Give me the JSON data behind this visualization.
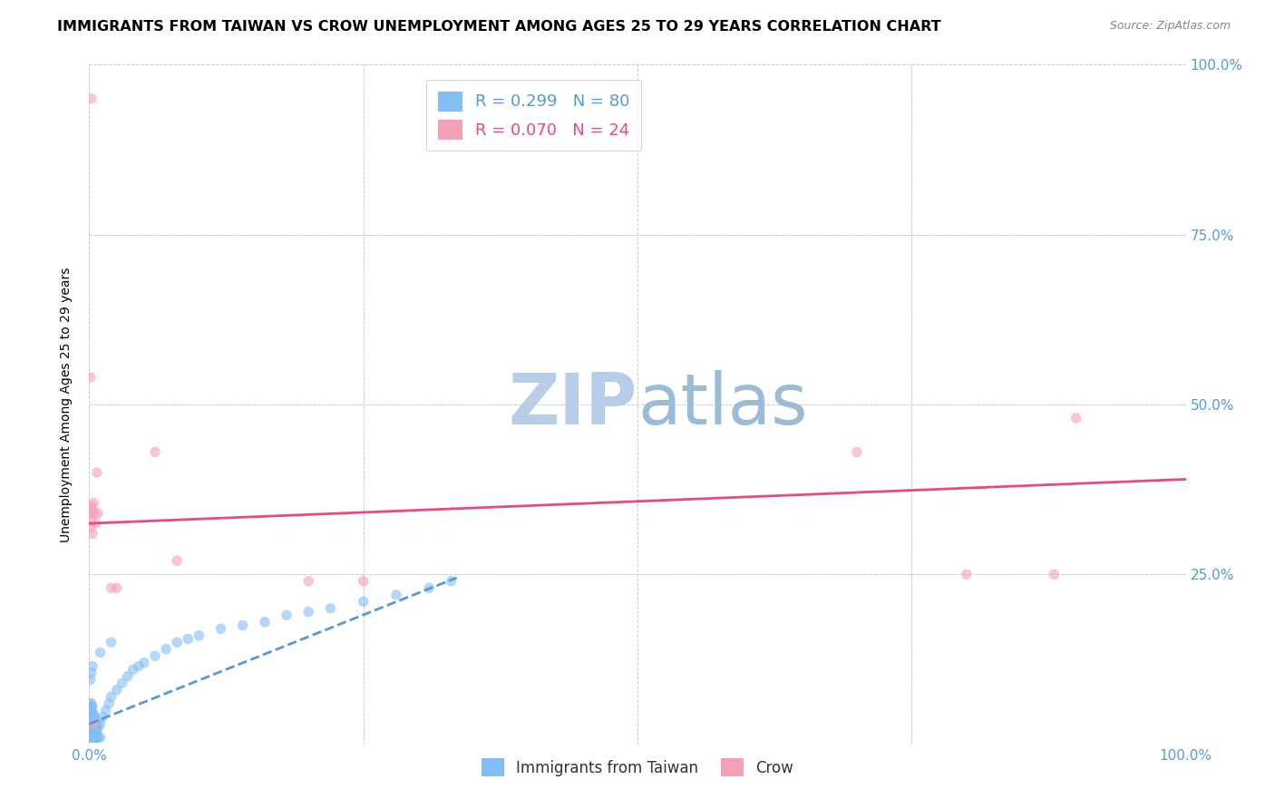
{
  "title": "IMMIGRANTS FROM TAIWAN VS CROW UNEMPLOYMENT AMONG AGES 25 TO 29 YEARS CORRELATION CHART",
  "source": "Source: ZipAtlas.com",
  "ylabel": "Unemployment Among Ages 25 to 29 years",
  "xlim": [
    0,
    1.0
  ],
  "ylim": [
    0,
    1.0
  ],
  "watermark_zip": "ZIP",
  "watermark_atlas": "atlas",
  "legend_r1": "R = 0.299",
  "legend_n1": "N = 80",
  "legend_r2": "R = 0.070",
  "legend_n2": "N = 24",
  "blue_scatter_x": [
    0.001,
    0.001,
    0.001,
    0.001,
    0.001,
    0.001,
    0.001,
    0.001,
    0.001,
    0.001,
    0.002,
    0.002,
    0.002,
    0.002,
    0.002,
    0.002,
    0.002,
    0.002,
    0.002,
    0.002,
    0.003,
    0.003,
    0.003,
    0.003,
    0.003,
    0.003,
    0.003,
    0.003,
    0.004,
    0.004,
    0.004,
    0.004,
    0.004,
    0.004,
    0.005,
    0.005,
    0.005,
    0.005,
    0.005,
    0.006,
    0.006,
    0.006,
    0.006,
    0.007,
    0.007,
    0.007,
    0.008,
    0.008,
    0.01,
    0.01,
    0.012,
    0.015,
    0.018,
    0.02,
    0.025,
    0.03,
    0.035,
    0.04,
    0.045,
    0.05,
    0.06,
    0.07,
    0.08,
    0.09,
    0.1,
    0.12,
    0.14,
    0.16,
    0.18,
    0.2,
    0.22,
    0.25,
    0.28,
    0.31,
    0.33,
    0.001,
    0.002,
    0.003,
    0.01,
    0.02
  ],
  "blue_scatter_y": [
    0.02,
    0.025,
    0.03,
    0.035,
    0.04,
    0.045,
    0.05,
    0.055,
    0.06,
    0.01,
    0.02,
    0.025,
    0.03,
    0.035,
    0.04,
    0.045,
    0.05,
    0.055,
    0.06,
    0.01,
    0.02,
    0.025,
    0.03,
    0.035,
    0.04,
    0.045,
    0.055,
    0.01,
    0.02,
    0.025,
    0.03,
    0.035,
    0.045,
    0.01,
    0.02,
    0.025,
    0.03,
    0.04,
    0.01,
    0.02,
    0.025,
    0.035,
    0.01,
    0.02,
    0.03,
    0.01,
    0.025,
    0.01,
    0.03,
    0.01,
    0.04,
    0.05,
    0.06,
    0.07,
    0.08,
    0.09,
    0.1,
    0.11,
    0.115,
    0.12,
    0.13,
    0.14,
    0.15,
    0.155,
    0.16,
    0.17,
    0.175,
    0.18,
    0.19,
    0.195,
    0.2,
    0.21,
    0.22,
    0.23,
    0.24,
    0.095,
    0.105,
    0.115,
    0.135,
    0.15
  ],
  "pink_scatter_x": [
    0.001,
    0.001,
    0.002,
    0.002,
    0.003,
    0.003,
    0.004,
    0.004,
    0.005,
    0.006,
    0.007,
    0.008,
    0.02,
    0.025,
    0.06,
    0.08,
    0.2,
    0.25,
    0.7,
    0.8,
    0.88,
    0.9,
    0.001,
    0.002
  ],
  "pink_scatter_y": [
    0.32,
    0.34,
    0.33,
    0.35,
    0.31,
    0.345,
    0.355,
    0.03,
    0.34,
    0.325,
    0.4,
    0.34,
    0.23,
    0.23,
    0.43,
    0.27,
    0.24,
    0.24,
    0.43,
    0.25,
    0.25,
    0.48,
    0.54,
    0.95
  ],
  "blue_line_x": [
    0.0,
    0.335
  ],
  "blue_line_y": [
    0.03,
    0.245
  ],
  "pink_line_x": [
    0.0,
    1.0
  ],
  "pink_line_y": [
    0.325,
    0.39
  ],
  "scatter_size": 70,
  "scatter_alpha": 0.6,
  "blue_color": "#82BEF5",
  "pink_color": "#F4A0B5",
  "blue_line_color": "#5599DD",
  "pink_line_color": "#EE4488",
  "grid_color": "#CCCCCC",
  "background_color": "#FFFFFF",
  "title_fontsize": 11.5,
  "axis_label_fontsize": 10,
  "tick_fontsize": 11,
  "tick_color": "#5599DD",
  "watermark_fontsize": 56
}
